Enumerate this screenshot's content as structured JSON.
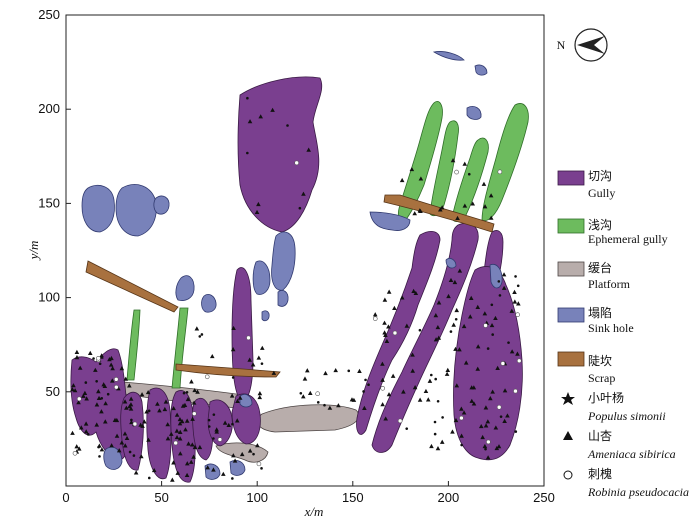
{
  "map": {
    "x_axis": {
      "label": "x/m",
      "range": [
        0,
        250
      ],
      "ticks": [
        "0",
        "50",
        "100",
        "150",
        "200",
        "250"
      ]
    },
    "y_axis": {
      "label": "y/m",
      "range": [
        0,
        250
      ],
      "ticks": [
        "50",
        "100",
        "150",
        "200",
        "250"
      ]
    },
    "north_label": "N"
  },
  "legend": [
    {
      "key": "gully",
      "zh": "切沟",
      "en": "Gully",
      "color": "#7a3f8f"
    },
    {
      "key": "ephemeral",
      "zh": "浅沟",
      "en": "Ephemeral gully",
      "color": "#6dbb5e"
    },
    {
      "key": "platform",
      "zh": "缓台",
      "en": "Platform",
      "color": "#b8adab"
    },
    {
      "key": "sinkhole",
      "zh": "塌陷",
      "en": "Sink hole",
      "color": "#7882ba"
    },
    {
      "key": "scrap",
      "zh": "陡坎",
      "en": "Scrap",
      "color": "#a8713f"
    },
    {
      "key": "populus",
      "symbol": "star",
      "zh": "小叶杨",
      "en": "Populus simonii"
    },
    {
      "key": "ameniaca",
      "symbol": "triangle",
      "zh": "山杏",
      "en": "Ameniaca sibirica"
    },
    {
      "key": "robinia",
      "symbol": "circle",
      "zh": "刺槐",
      "en": "Robinia pseudocacia"
    }
  ]
}
